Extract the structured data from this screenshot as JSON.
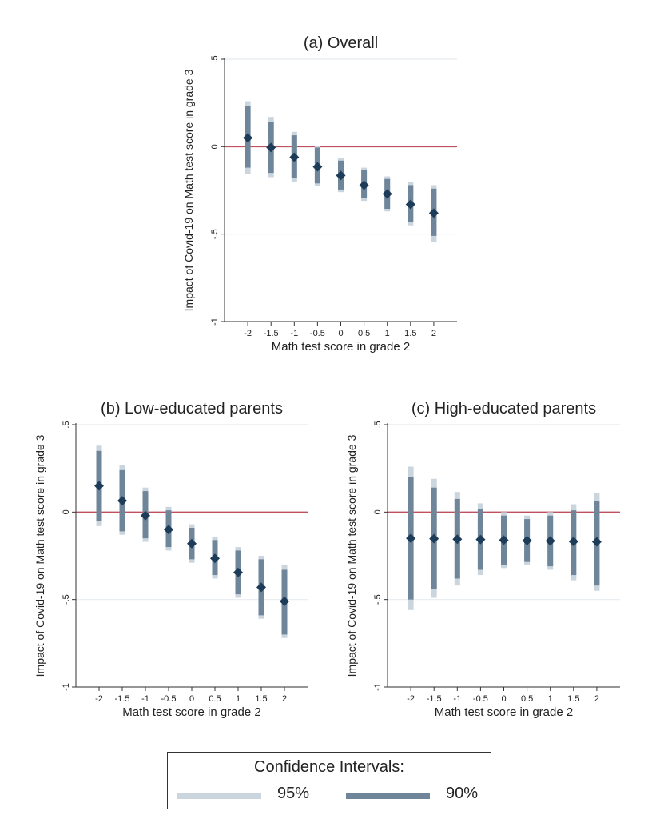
{
  "colors": {
    "ci95": "#cbd5de",
    "ci90": "#6e859a",
    "point": "#1d3c5a",
    "zero_line": "#c0505f",
    "grid": "#e4ebef",
    "axis": "#333333",
    "text": "#222222"
  },
  "chart_data": [
    {
      "type": "scatter",
      "id": "overall",
      "title": "(a) Overall",
      "xlabel": "Math test score in grade 2",
      "ylabel": "Impact of Covid-19 on Math test score in grade 3",
      "x_ticks": [
        "-2",
        "-1.5",
        "-1",
        "-0.5",
        "0",
        "0.5",
        "1",
        "1.5",
        "2"
      ],
      "y_ticks": [
        ".5",
        "0",
        "-.5",
        "-1"
      ],
      "ylim": [
        -1,
        0.5
      ],
      "grid": true,
      "reference_line_y": 0,
      "series": [
        {
          "x": [
            -2,
            -1.5,
            -1,
            -0.5,
            0,
            0.5,
            1,
            1.5,
            2
          ],
          "estimate": [
            0.05,
            -0.005,
            -0.06,
            -0.115,
            -0.165,
            -0.22,
            -0.27,
            -0.33,
            -0.38
          ],
          "ci90": [
            [
              -0.12,
              0.23
            ],
            [
              -0.15,
              0.14
            ],
            [
              -0.18,
              0.065
            ],
            [
              -0.21,
              -0.005
            ],
            [
              -0.245,
              -0.08
            ],
            [
              -0.295,
              -0.135
            ],
            [
              -0.355,
              -0.185
            ],
            [
              -0.43,
              -0.22
            ],
            [
              -0.51,
              -0.24
            ]
          ],
          "ci95": [
            [
              -0.155,
              0.26
            ],
            [
              -0.175,
              0.17
            ],
            [
              -0.2,
              0.085
            ],
            [
              -0.225,
              0.005
            ],
            [
              -0.26,
              -0.065
            ],
            [
              -0.31,
              -0.12
            ],
            [
              -0.37,
              -0.17
            ],
            [
              -0.45,
              -0.2
            ],
            [
              -0.545,
              -0.22
            ]
          ]
        }
      ]
    },
    {
      "type": "scatter",
      "id": "low-educated",
      "title": "(b) Low-educated parents",
      "xlabel": "Math test score in grade 2",
      "ylabel": "Impact of Covid-19 on Math test score in grade 3",
      "x_ticks": [
        "-2",
        "-1.5",
        "-1",
        "-0.5",
        "0",
        "0.5",
        "1",
        "1.5",
        "2"
      ],
      "y_ticks": [
        ".5",
        "0",
        "-.5",
        "-1"
      ],
      "ylim": [
        -1,
        0.5
      ],
      "grid": true,
      "reference_line_y": 0,
      "series": [
        {
          "x": [
            -2,
            -1.5,
            -1,
            -0.5,
            0,
            0.5,
            1,
            1.5,
            2
          ],
          "estimate": [
            0.15,
            0.065,
            -0.02,
            -0.1,
            -0.18,
            -0.265,
            -0.345,
            -0.43,
            -0.51
          ],
          "ci90": [
            [
              -0.05,
              0.35
            ],
            [
              -0.11,
              0.24
            ],
            [
              -0.15,
              0.12
            ],
            [
              -0.2,
              0.01
            ],
            [
              -0.27,
              -0.09
            ],
            [
              -0.36,
              -0.16
            ],
            [
              -0.47,
              -0.22
            ],
            [
              -0.59,
              -0.27
            ],
            [
              -0.7,
              -0.33
            ]
          ],
          "ci95": [
            [
              -0.08,
              0.38
            ],
            [
              -0.13,
              0.27
            ],
            [
              -0.17,
              0.14
            ],
            [
              -0.22,
              0.03
            ],
            [
              -0.29,
              -0.07
            ],
            [
              -0.38,
              -0.14
            ],
            [
              -0.49,
              -0.2
            ],
            [
              -0.61,
              -0.25
            ],
            [
              -0.72,
              -0.3
            ]
          ]
        }
      ]
    },
    {
      "type": "scatter",
      "id": "high-educated",
      "title": "(c) High-educated parents",
      "xlabel": "Math test score in grade 2",
      "ylabel": "Impact of Covid-19 on Math test score in grade 3",
      "x_ticks": [
        "-2",
        "-1.5",
        "-1",
        "-0.5",
        "0",
        "0.5",
        "1",
        "1.5",
        "2"
      ],
      "y_ticks": [
        ".5",
        "0",
        "-.5",
        "-1"
      ],
      "ylim": [
        -1,
        0.5
      ],
      "grid": true,
      "reference_line_y": 0,
      "series": [
        {
          "x": [
            -2,
            -1.5,
            -1,
            -0.5,
            0,
            0.5,
            1,
            1.5,
            2
          ],
          "estimate": [
            -0.15,
            -0.152,
            -0.155,
            -0.157,
            -0.16,
            -0.163,
            -0.165,
            -0.168,
            -0.17
          ],
          "ci90": [
            [
              -0.5,
              0.2
            ],
            [
              -0.44,
              0.14
            ],
            [
              -0.38,
              0.075
            ],
            [
              -0.33,
              0.015
            ],
            [
              -0.3,
              -0.02
            ],
            [
              -0.285,
              -0.04
            ],
            [
              -0.31,
              -0.02
            ],
            [
              -0.36,
              0.01
            ],
            [
              -0.42,
              0.065
            ]
          ],
          "ci95": [
            [
              -0.56,
              0.26
            ],
            [
              -0.49,
              0.19
            ],
            [
              -0.42,
              0.115
            ],
            [
              -0.36,
              0.05
            ],
            [
              -0.32,
              0.0
            ],
            [
              -0.3,
              -0.02
            ],
            [
              -0.33,
              0.0
            ],
            [
              -0.39,
              0.045
            ],
            [
              -0.45,
              0.11
            ]
          ]
        }
      ]
    }
  ],
  "legend": {
    "title": "Confidence Intervals:",
    "items": [
      {
        "label": "95%",
        "color": "#cbd5de"
      },
      {
        "label": "90%",
        "color": "#6e859a"
      }
    ]
  }
}
